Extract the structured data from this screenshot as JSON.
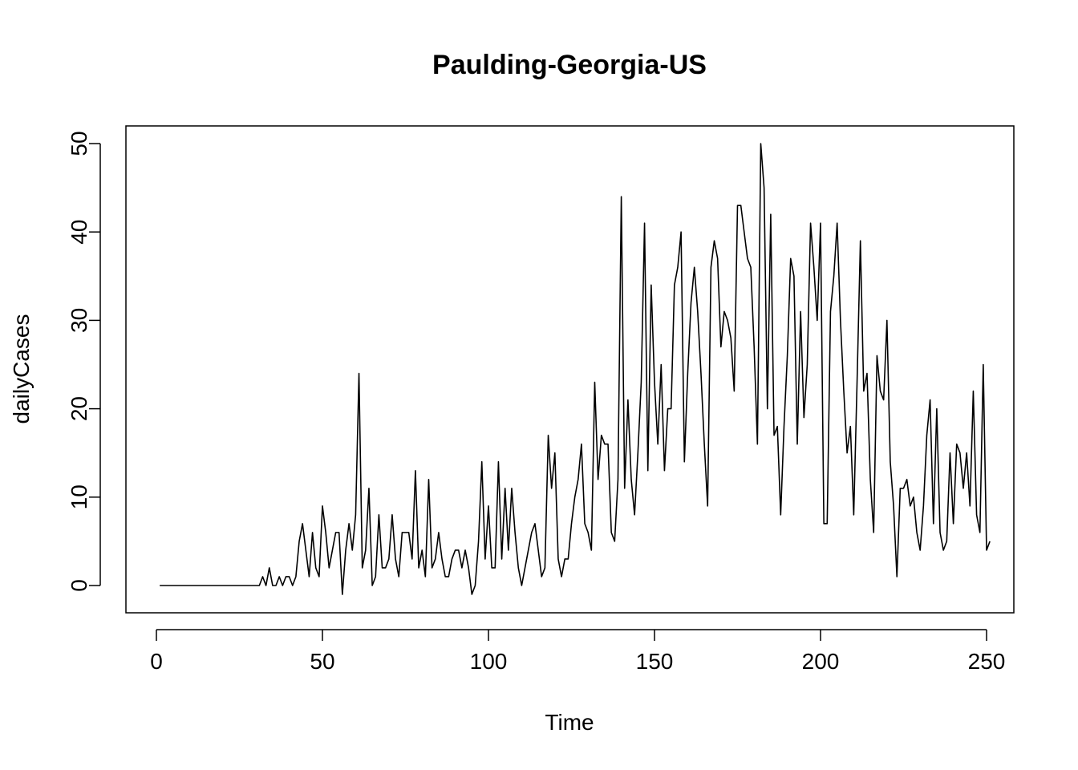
{
  "chart_data": {
    "type": "line",
    "title": "Paulding-Georgia-US",
    "xlabel": "Time",
    "ylabel": "dailyCases",
    "xlim": [
      1,
      248
    ],
    "ylim": [
      -1,
      50
    ],
    "xticks": [
      0,
      50,
      100,
      150,
      200,
      250
    ],
    "yticks": [
      0,
      10,
      20,
      30,
      40,
      50
    ],
    "grid": false,
    "series": [
      {
        "color": "#000000",
        "x_start": 1,
        "values": [
          0,
          0,
          0,
          0,
          0,
          0,
          0,
          0,
          0,
          0,
          0,
          0,
          0,
          0,
          0,
          0,
          0,
          0,
          0,
          0,
          0,
          0,
          0,
          0,
          0,
          0,
          0,
          0,
          0,
          0,
          0,
          1,
          0,
          2,
          0,
          0,
          1,
          0,
          1,
          1,
          0,
          1,
          5,
          7,
          4,
          1,
          6,
          2,
          1,
          9,
          6,
          2,
          4,
          6,
          6,
          -1,
          4,
          7,
          4,
          8,
          24,
          2,
          4,
          11,
          0,
          1,
          8,
          2,
          2,
          3,
          8,
          3,
          1,
          6,
          6,
          6,
          3,
          13,
          2,
          4,
          1,
          12,
          2,
          3,
          6,
          3,
          1,
          1,
          3,
          4,
          4,
          2,
          4,
          2,
          -1,
          0,
          5,
          14,
          3,
          9,
          2,
          2,
          14,
          3,
          11,
          4,
          11,
          6,
          2,
          0,
          2,
          4,
          6,
          7,
          4,
          1,
          2,
          17,
          11,
          15,
          3,
          1,
          3,
          3,
          7,
          10,
          12,
          16,
          7,
          6,
          4,
          23,
          12,
          17,
          16,
          16,
          6,
          5,
          12,
          44,
          11,
          21,
          12,
          8,
          15,
          23,
          41,
          13,
          34,
          23,
          16,
          25,
          13,
          20,
          20,
          34,
          36,
          40,
          14,
          24,
          32,
          36,
          31,
          24,
          16,
          9,
          36,
          39,
          37,
          27,
          31,
          30,
          28,
          22,
          43,
          43,
          40,
          37,
          36,
          27,
          16,
          50,
          45,
          20,
          42,
          17,
          18,
          8,
          18,
          26,
          37,
          35,
          16,
          31,
          19,
          25,
          41,
          36,
          30,
          41,
          7,
          7,
          31,
          35,
          41,
          30,
          22,
          15,
          18,
          8,
          23,
          39,
          22,
          24,
          12,
          6,
          26,
          22,
          21,
          30,
          14,
          9,
          1,
          11,
          11,
          12,
          9,
          10,
          6,
          4,
          9,
          17,
          21,
          7,
          20,
          6,
          4,
          5,
          15,
          7,
          16,
          15,
          11,
          15,
          9,
          22,
          8,
          6,
          25,
          4,
          5
        ]
      }
    ]
  }
}
